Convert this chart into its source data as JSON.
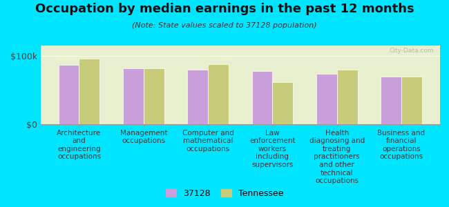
{
  "title": "Occupation by median earnings in the past 12 months",
  "subtitle": "(Note: State values scaled to 37128 population)",
  "categories": [
    "Architecture\nand\nengineering\noccupations",
    "Management\noccupations",
    "Computer and\nmathematical\noccupations",
    "Law\nenforcement\nworkers\nincluding\nsupervisors",
    "Health\ndiagnosing and\ntreating\npractitioners\nand other\ntechnical\noccupations",
    "Business and\nfinancial\noperations\noccupations"
  ],
  "values_37128": [
    87000,
    82000,
    80000,
    78000,
    74000,
    70000
  ],
  "values_tennessee": [
    96000,
    82000,
    88000,
    62000,
    80000,
    70000
  ],
  "color_37128": "#c9a0dc",
  "color_tennessee": "#c8cc7a",
  "background_color": "#00e5ff",
  "plot_bg_color": "#e8f0d0",
  "ylim": [
    0,
    115000
  ],
  "yticks": [
    0,
    100000
  ],
  "ytick_labels": [
    "$0",
    "$100k"
  ],
  "watermark": "City-Data.com",
  "legend_label_1": "37128",
  "legend_label_2": "Tennessee",
  "title_fontsize": 13,
  "subtitle_fontsize": 8,
  "tick_label_fontsize": 7.5,
  "legend_fontsize": 9
}
